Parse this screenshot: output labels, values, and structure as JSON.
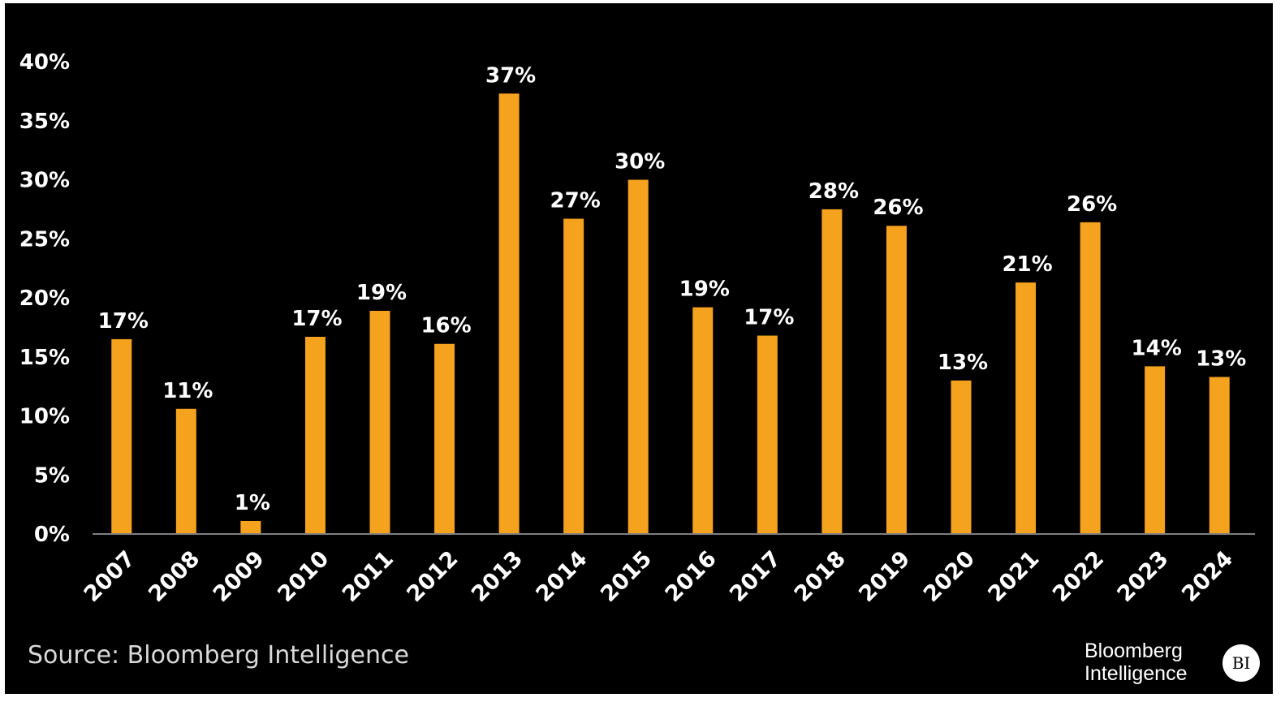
{
  "chart_data": {
    "type": "bar",
    "title": "",
    "xlabel": "",
    "ylabel": "",
    "ylim": [
      0,
      40
    ],
    "yticks": [
      0,
      5,
      10,
      15,
      20,
      25,
      30,
      35,
      40
    ],
    "ytick_labels": [
      "0%",
      "5%",
      "10%",
      "15%",
      "20%",
      "25%",
      "30%",
      "35%",
      "40%"
    ],
    "grid": false,
    "categories": [
      "2007",
      "2008",
      "2009",
      "2010",
      "2011",
      "2012",
      "2013",
      "2014",
      "2015",
      "2016",
      "2017",
      "2018",
      "2019",
      "2020",
      "2021",
      "2022",
      "2023",
      "2024"
    ],
    "values": [
      16.5,
      10.6,
      1.1,
      16.7,
      18.9,
      16.1,
      37.3,
      26.7,
      30.0,
      19.2,
      16.8,
      27.5,
      26.1,
      13.0,
      21.3,
      26.4,
      14.2,
      13.3
    ],
    "data_labels": [
      "17%",
      "11%",
      "1%",
      "17%",
      "19%",
      "16%",
      "37%",
      "27%",
      "30%",
      "19%",
      "17%",
      "28%",
      "26%",
      "13%",
      "21%",
      "26%",
      "14%",
      "13%"
    ],
    "bar_color": "#f5a21f",
    "background_color": "#000000"
  },
  "footer": {
    "source": "Source: Bloomberg Intelligence",
    "brand_line1": "Bloomberg",
    "brand_line2": "Intelligence",
    "badge": "BI"
  }
}
